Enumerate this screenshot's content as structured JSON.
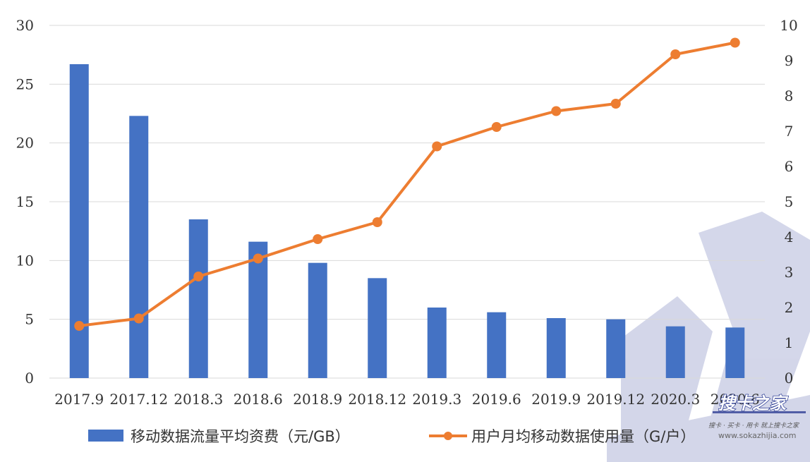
{
  "chart_data": {
    "type": "bar+line",
    "categories": [
      "2017.9",
      "2017.12",
      "2018.3",
      "2018.6",
      "2018.9",
      "2018.12",
      "2019.3",
      "2019.6",
      "2019.9",
      "2019.12",
      "2020.3",
      "2020.6"
    ],
    "series": [
      {
        "name": "移动数据流量平均资费（元/GB）",
        "type": "bar",
        "axis": "left",
        "color": "#4472C4",
        "values": [
          26.7,
          22.3,
          13.5,
          11.6,
          9.8,
          8.5,
          6.0,
          5.6,
          5.1,
          5.0,
          4.4,
          4.3
        ]
      },
      {
        "name": "用户月均移动数据使用量（G/户）",
        "type": "line",
        "axis": "right",
        "color": "#ED7D31",
        "values": [
          1.48,
          1.69,
          2.88,
          3.39,
          3.94,
          4.42,
          6.57,
          7.12,
          7.57,
          7.78,
          9.18,
          9.51
        ]
      }
    ],
    "y_left": {
      "min": 0,
      "max": 30,
      "ticks": [
        "0",
        "5",
        "10",
        "15",
        "20",
        "25",
        "30"
      ]
    },
    "y_right": {
      "min": 0,
      "max": 10,
      "ticks": [
        "0",
        "1",
        "2",
        "3",
        "4",
        "5",
        "6",
        "7",
        "8",
        "9",
        "10"
      ]
    },
    "grid": true,
    "legend_position": "bottom",
    "title": "",
    "xlabel": "",
    "ylabel": ""
  },
  "watermark": {
    "logo_text": "搜卡之家",
    "tagline": "搜卡 · 买卡 · 用卡 就上搜卡之家",
    "url": "www.sokazhijia.com"
  }
}
